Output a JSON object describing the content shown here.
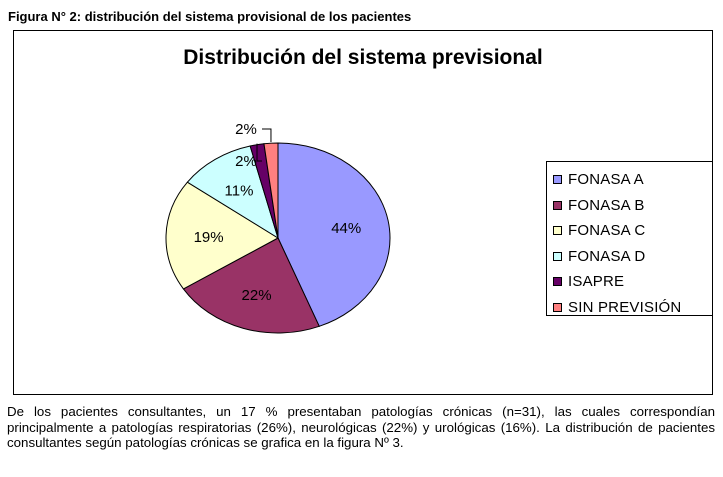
{
  "figure": {
    "caption": "Figura N° 2: distribución del sistema provisional de los pacientes"
  },
  "chart_data": {
    "type": "pie",
    "title": "Distribución del sistema previsional",
    "categories": [
      "FONASA A",
      "FONASA B",
      "FONASA C",
      "FONASA D",
      "ISAPRE",
      "SIN PREVISIÓN"
    ],
    "values": [
      44,
      22,
      19,
      11,
      2,
      2
    ],
    "labels": [
      "44%",
      "22%",
      "19%",
      "11%",
      "2%",
      "2%"
    ],
    "colors": [
      "#9999ff",
      "#993366",
      "#ffffcc",
      "#ccffff",
      "#660066",
      "#ff8080"
    ],
    "legend": "right"
  },
  "paragraph": "De los pacientes consultantes, un 17 % presentaban patologías crónicas (n=31), las cuales correspondían principalmente a patologías respiratorias (26%), neurológicas (22%) y urológicas (16%).  La distribución de pacientes consultantes según patologías crónicas se grafica en la figura Nº 3."
}
